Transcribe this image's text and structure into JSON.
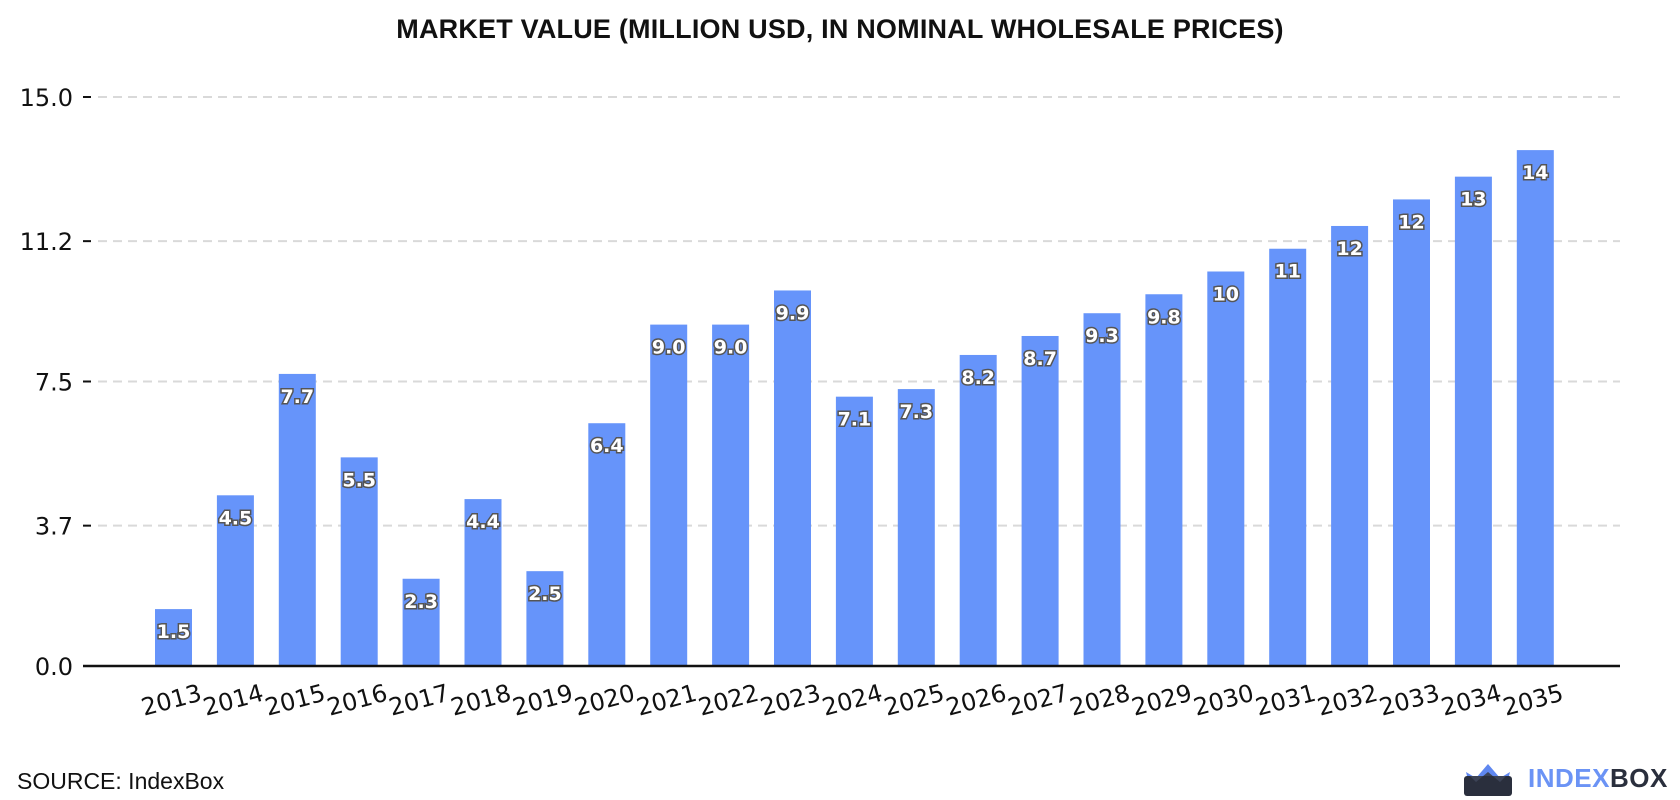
{
  "chart_data": {
    "type": "bar",
    "title": "MARKET VALUE (MILLION USD, IN NOMINAL WHOLESALE PRICES)",
    "xlabel": "",
    "ylabel": "",
    "categories": [
      "2013",
      "2014",
      "2015",
      "2016",
      "2017",
      "2018",
      "2019",
      "2020",
      "2021",
      "2022",
      "2023",
      "2024",
      "2025",
      "2026",
      "2027",
      "2028",
      "2029",
      "2030",
      "2031",
      "2032",
      "2033",
      "2034",
      "2035"
    ],
    "values": [
      1.5,
      4.5,
      7.7,
      5.5,
      2.3,
      4.4,
      2.5,
      6.4,
      9.0,
      9.0,
      9.9,
      7.1,
      7.3,
      8.2,
      8.7,
      9.3,
      9.8,
      10.4,
      11.0,
      11.6,
      12.3,
      12.9,
      13.6
    ],
    "data_labels": [
      "1.5",
      "4.5",
      "7.7",
      "5.5",
      "2.3",
      "4.4",
      "2.5",
      "6.4",
      "9.0",
      "9.0",
      "9.9",
      "7.1",
      "7.3",
      "8.2",
      "8.7",
      "9.3",
      "9.8",
      "10",
      "11",
      "12",
      "12",
      "13",
      "14"
    ],
    "yticks": [
      0.0,
      3.7,
      7.5,
      11.2,
      15.0
    ],
    "ytick_labels": [
      "0.0",
      "3.7",
      "7.5",
      "11.2",
      "15.0"
    ],
    "ylim": [
      0,
      15.0
    ],
    "grid": true,
    "bar_color": "#6694fa"
  },
  "footer": {
    "source": "SOURCE: IndexBox",
    "logo_part1": "INDEX",
    "logo_part2": "BOX"
  }
}
